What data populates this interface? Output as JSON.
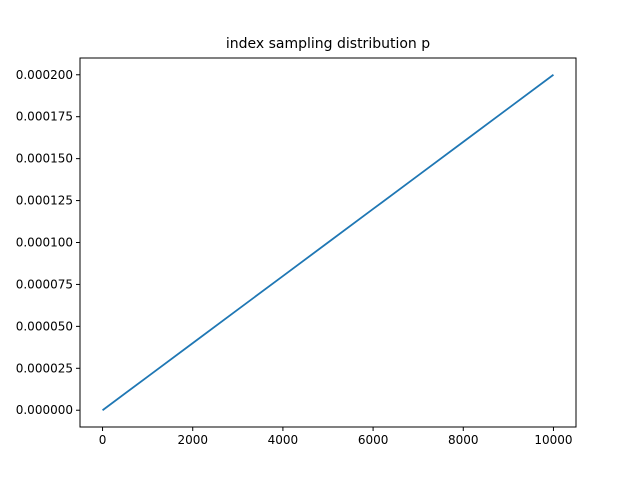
{
  "chart_data": {
    "type": "line",
    "title": "index sampling distribution p",
    "xlabel": "",
    "ylabel": "",
    "xlim": [
      -500,
      10500
    ],
    "ylim": [
      -1e-05,
      0.00021
    ],
    "x_ticks": [
      0,
      2000,
      4000,
      6000,
      8000,
      10000
    ],
    "x_tick_labels": [
      "0",
      "2000",
      "4000",
      "6000",
      "8000",
      "10000"
    ],
    "y_ticks": [
      0.0,
      2.5e-05,
      5e-05,
      7.5e-05,
      0.0001,
      0.000125,
      0.00015,
      0.000175,
      0.0002
    ],
    "y_tick_labels": [
      "0.000000",
      "0.000025",
      "0.000050",
      "0.000075",
      "0.000100",
      "0.000125",
      "0.000150",
      "0.000175",
      "0.000200"
    ],
    "grid": false,
    "series": [
      {
        "color": "#1f77b4",
        "x": [
          0,
          1000,
          2000,
          3000,
          4000,
          5000,
          6000,
          7000,
          8000,
          9000,
          10000
        ],
        "values": [
          0.0,
          2e-05,
          4e-05,
          6e-05,
          8e-05,
          0.0001,
          0.00012,
          0.00014,
          0.00016,
          0.00018,
          0.0002
        ]
      }
    ]
  }
}
